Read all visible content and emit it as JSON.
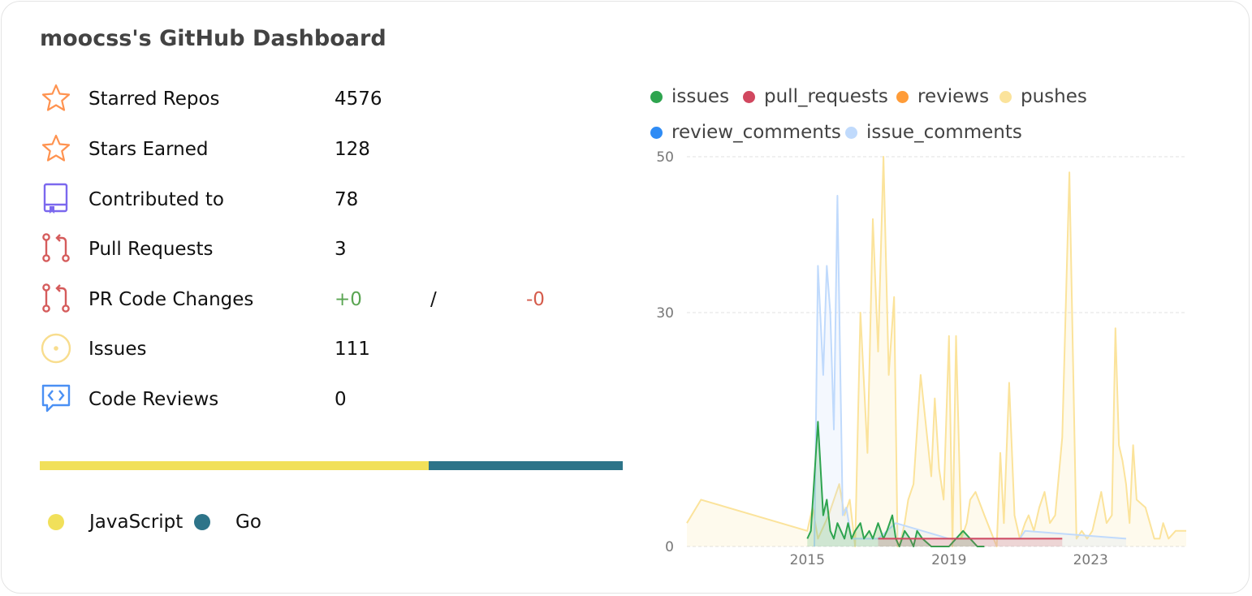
{
  "header": {
    "title": "moocss's GitHub Dashboard"
  },
  "stats": [
    {
      "label": "Starred Repos",
      "value": "4576",
      "icon": "star-icon",
      "color": "#ff9350"
    },
    {
      "label": "Stars Earned",
      "value": "128",
      "icon": "star-icon",
      "color": "#ff9350"
    },
    {
      "label": "Contributed to",
      "value": "78",
      "icon": "repo-icon",
      "color": "#7b68ee"
    },
    {
      "label": "Pull Requests",
      "value": "3",
      "icon": "pull-request-icon",
      "color": "#d55c5c"
    },
    {
      "label": "PR Code Changes",
      "additions": "+0",
      "separator": "/",
      "deletions": "-0",
      "icon": "pull-request-icon",
      "color": "#d55c5c",
      "additions_color": "#5aa552",
      "deletions_color": "#d55c4c"
    },
    {
      "label": "Issues",
      "value": "111",
      "icon": "issue-icon",
      "color": "#f8dd8e"
    },
    {
      "label": "Code Reviews",
      "value": "0",
      "icon": "code-review-icon",
      "color": "#4a90f4"
    }
  ],
  "languages": [
    {
      "name": "JavaScript",
      "color": "#f1e05a",
      "percent": 66.7
    },
    {
      "name": "Go",
      "color": "#2d7489",
      "percent": 33.3
    }
  ],
  "chart_data": {
    "type": "area",
    "title": "",
    "xlabel": "",
    "ylabel": "",
    "ylim": [
      0,
      50
    ],
    "yticks": [
      0,
      30,
      50
    ],
    "xticks": [
      "2015",
      "2019",
      "2023"
    ],
    "xrange": [
      2011.6,
      2025.7
    ],
    "grid": true,
    "legend_position": "top",
    "legend": [
      {
        "name": "issues",
        "color": "#2ea44f"
      },
      {
        "name": "pull_requests",
        "color": "#d1475f"
      },
      {
        "name": "reviews",
        "color": "#ff9c38"
      },
      {
        "name": "pushes",
        "color": "#fbe39b"
      },
      {
        "name": "review_comments",
        "color": "#2f8cf5"
      },
      {
        "name": "issue_comments",
        "color": "#c0dafc"
      }
    ],
    "series": [
      {
        "name": "pushes",
        "color": "#fbe39b",
        "x": [
          2011.6,
          2012.0,
          2015.0,
          2015.15,
          2015.3,
          2015.6,
          2015.9,
          2016.05,
          2016.2,
          2016.35,
          2016.5,
          2016.7,
          2016.85,
          2017.0,
          2017.15,
          2017.3,
          2017.45,
          2017.55,
          2017.65,
          2017.75,
          2017.85,
          2018.0,
          2018.2,
          2018.5,
          2018.6,
          2018.72,
          2018.85,
          2019.0,
          2019.1,
          2019.2,
          2019.35,
          2019.5,
          2019.6,
          2019.75,
          2020.0,
          2020.35,
          2020.45,
          2020.55,
          2020.7,
          2020.85,
          2021.0,
          2021.15,
          2021.25,
          2021.4,
          2021.55,
          2021.7,
          2021.85,
          2022.0,
          2022.2,
          2022.4,
          2022.6,
          2022.75,
          2022.9,
          2023.05,
          2023.15,
          2023.3,
          2023.45,
          2023.6,
          2023.7,
          2023.8,
          2023.9,
          2024.0,
          2024.1,
          2024.2,
          2024.3,
          2024.55,
          2024.8,
          2024.95,
          2025.05,
          2025.2,
          2025.4,
          2025.7
        ],
        "values": [
          3,
          6,
          2,
          5,
          1,
          4,
          8,
          4,
          6,
          0,
          30,
          12,
          42,
          25,
          50,
          22,
          32,
          0,
          1,
          3,
          6,
          8,
          22,
          9,
          19,
          10,
          6,
          27,
          0,
          27,
          1,
          3,
          6,
          7,
          4,
          0,
          12,
          3,
          21,
          4,
          1,
          3,
          4,
          2,
          5,
          7,
          3,
          4,
          14,
          48,
          1,
          2,
          1,
          2,
          4,
          7,
          3,
          4,
          28,
          13,
          11,
          8,
          3,
          13,
          6,
          5,
          1,
          1,
          3,
          1,
          2,
          2
        ]
      },
      {
        "name": "issue_comments",
        "color": "#c0dafc",
        "x": [
          2015.2,
          2015.3,
          2015.45,
          2015.55,
          2015.65,
          2015.75,
          2015.85,
          2016.0,
          2016.1,
          2016.25,
          2016.35,
          2016.6,
          2017.0,
          2017.5,
          2019.0,
          2020.5,
          2021.0,
          2021.15,
          2024.0
        ],
        "values": [
          0,
          36,
          22,
          36,
          30,
          15,
          45,
          4,
          5,
          1,
          1,
          1,
          1,
          3,
          1,
          1,
          1,
          2,
          1
        ]
      },
      {
        "name": "issues",
        "color": "#2ea44f",
        "x": [
          2015.0,
          2015.1,
          2015.3,
          2015.35,
          2015.45,
          2015.55,
          2015.65,
          2015.75,
          2015.85,
          2015.95,
          2016.05,
          2016.15,
          2016.25,
          2016.35,
          2016.5,
          2016.6,
          2016.75,
          2016.85,
          2017.0,
          2017.15,
          2017.25,
          2017.4,
          2017.5,
          2017.6,
          2017.75,
          2017.9,
          2018.0,
          2018.1,
          2018.25,
          2018.5,
          2019.0,
          2019.4,
          2019.6,
          2019.8,
          2020.0
        ],
        "values": [
          1,
          2,
          16,
          12,
          4,
          6,
          2,
          1,
          3,
          2,
          1,
          3,
          1,
          2,
          3,
          1,
          2,
          1,
          3,
          1,
          2,
          4,
          1,
          0,
          2,
          1,
          0,
          2,
          1,
          0,
          0,
          2,
          1,
          0,
          0
        ]
      },
      {
        "name": "pull_requests",
        "color": "#d1475f",
        "x": [
          2017.0,
          2022.2
        ],
        "values": [
          1,
          1
        ]
      },
      {
        "name": "reviews",
        "color": "#ff9c38",
        "x": [],
        "values": []
      },
      {
        "name": "review_comments",
        "color": "#2f8cf5",
        "x": [],
        "values": []
      }
    ]
  }
}
